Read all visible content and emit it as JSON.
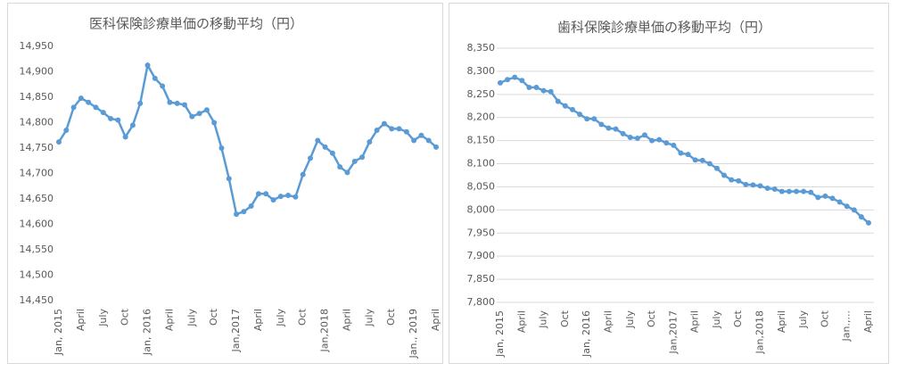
{
  "chart_data": [
    {
      "type": "line",
      "title": "医科保険診療単価の移動平均（円）",
      "categories": [
        "Jan, 2015",
        null,
        null,
        "April",
        null,
        null,
        "July",
        null,
        null,
        "Oct",
        null,
        null,
        "Jan, 2016",
        null,
        null,
        "April",
        null,
        null,
        "July",
        null,
        null,
        "Oct",
        null,
        null,
        "Jan,2017",
        null,
        null,
        "April",
        null,
        null,
        "July",
        null,
        null,
        "Oct",
        null,
        null,
        "Jan,2018",
        null,
        null,
        "April",
        null,
        null,
        "July",
        null,
        null,
        "Oct",
        null,
        null,
        "Jan., 2019",
        null,
        null,
        "April"
      ],
      "series": [
        {
          "name": "医科",
          "color": "#5b9bd5",
          "values": [
            14762,
            14785,
            14830,
            14848,
            14840,
            14830,
            14820,
            14808,
            14805,
            14772,
            14795,
            14838,
            14913,
            14887,
            14872,
            14840,
            14838,
            14835,
            14812,
            14818,
            14825,
            14800,
            14750,
            14690,
            14620,
            14625,
            14636,
            14660,
            14660,
            14648,
            14655,
            14657,
            14654,
            14698,
            14730,
            14765,
            14752,
            14740,
            14713,
            14702,
            14724,
            14732,
            14762,
            14785,
            14798,
            14788,
            14788,
            14782,
            14765,
            14775,
            14765,
            14752
          ]
        }
      ],
      "ylim": [
        14450,
        14950
      ],
      "yticks": [
        {
          "value": 14450,
          "label": "14,450"
        },
        {
          "value": 14500,
          "label": "14,500"
        },
        {
          "value": 14550,
          "label": "14,550"
        },
        {
          "value": 14600,
          "label": "14,600"
        },
        {
          "value": 14650,
          "label": "14,650"
        },
        {
          "value": 14700,
          "label": "14,700"
        },
        {
          "value": 14750,
          "label": "14,750"
        },
        {
          "value": 14800,
          "label": "14,800"
        },
        {
          "value": 14850,
          "label": "14,850"
        },
        {
          "value": 14900,
          "label": "14,900"
        },
        {
          "value": 14950,
          "label": "14,950"
        }
      ],
      "grid": false
    },
    {
      "type": "line",
      "title": "歯科保険診療単価の移動平均（円）",
      "categories": [
        "Jan, 2015",
        null,
        null,
        "April",
        null,
        null,
        "July",
        null,
        null,
        "Oct",
        null,
        null,
        "Jan, 2016",
        null,
        null,
        "April",
        null,
        null,
        "July",
        null,
        null,
        "Oct",
        null,
        null,
        "Jan,2017",
        null,
        null,
        "April",
        null,
        null,
        "July",
        null,
        null,
        "Oct",
        null,
        null,
        "Jan,2018",
        null,
        null,
        "April",
        null,
        null,
        "July",
        null,
        null,
        "Oct",
        null,
        null,
        "Jan.,...",
        null,
        null,
        "April"
      ],
      "series": [
        {
          "name": "歯科",
          "color": "#5b9bd5",
          "values": [
            8275,
            8282,
            8287,
            8280,
            8265,
            8265,
            8258,
            8256,
            8235,
            8225,
            8217,
            8207,
            8197,
            8197,
            8185,
            8177,
            8175,
            8165,
            8157,
            8155,
            8162,
            8150,
            8152,
            8145,
            8140,
            8123,
            8120,
            8108,
            8107,
            8100,
            8090,
            8075,
            8065,
            8063,
            8055,
            8054,
            8052,
            8047,
            8045,
            8040,
            8040,
            8040,
            8040,
            8038,
            8027,
            8030,
            8025,
            8017,
            8008,
            8000,
            7985,
            7972
          ]
        }
      ],
      "ylim": [
        7800,
        8350
      ],
      "yticks": [
        {
          "value": 7800,
          "label": "7,800"
        },
        {
          "value": 7850,
          "label": "7,850"
        },
        {
          "value": 7900,
          "label": "7,900"
        },
        {
          "value": 7950,
          "label": "7,950"
        },
        {
          "value": 8000,
          "label": "8,000"
        },
        {
          "value": 8050,
          "label": "8,050"
        },
        {
          "value": 8100,
          "label": "8,100"
        },
        {
          "value": 8150,
          "label": "8,150"
        },
        {
          "value": 8200,
          "label": "8,200"
        },
        {
          "value": 8250,
          "label": "8,250"
        },
        {
          "value": 8300,
          "label": "8,300"
        },
        {
          "value": 8350,
          "label": "8,350"
        }
      ],
      "grid": true
    }
  ]
}
